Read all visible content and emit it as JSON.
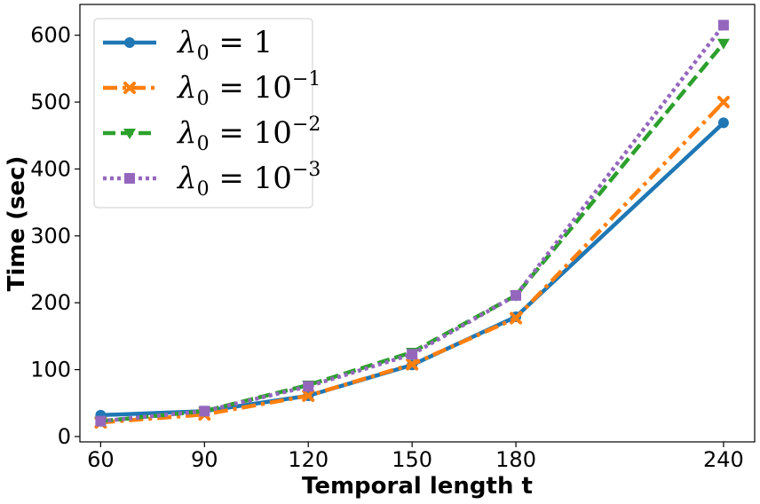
{
  "chart_data": {
    "type": "line",
    "xlabel": "Temporal length t",
    "ylabel": "Time (sec)",
    "x": [
      60,
      90,
      120,
      150,
      180,
      240
    ],
    "x_ticks": [
      "60",
      "90",
      "120",
      "150",
      "180",
      "240"
    ],
    "y_ticks": [
      "0",
      "100",
      "200",
      "300",
      "400",
      "500",
      "600"
    ],
    "xlim": [
      54,
      249
    ],
    "ylim": [
      -8,
      646
    ],
    "grid": false,
    "legend_position": "top-left",
    "series": [
      {
        "name": "λ0 = 1",
        "values": [
          32,
          38,
          61,
          107,
          179,
          469
        ],
        "color": "#1f77b4",
        "marker": "circle",
        "linestyle": "solid"
      },
      {
        "name": "λ0 = 10^-1",
        "values": [
          21,
          33,
          61,
          108,
          177,
          500
        ],
        "color": "#ff7f0e",
        "marker": "x",
        "linestyle": "dashdot"
      },
      {
        "name": "λ0 = 10^-2",
        "values": [
          23,
          38,
          77,
          126,
          211,
          588
        ],
        "color": "#2ca02c",
        "marker": "triangle-down",
        "linestyle": "dashed"
      },
      {
        "name": "λ0 = 10^-3",
        "values": [
          23,
          38,
          75,
          123,
          211,
          615
        ],
        "color": "#9467bd",
        "marker": "square",
        "linestyle": "dotted"
      }
    ]
  }
}
